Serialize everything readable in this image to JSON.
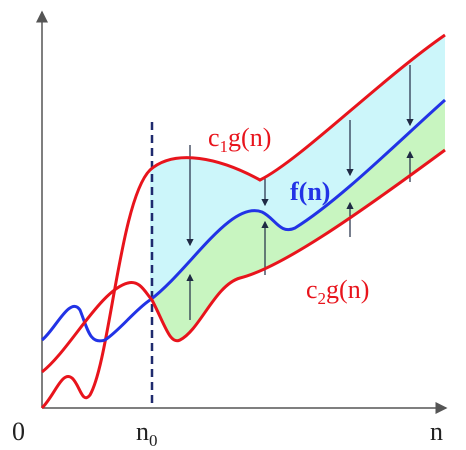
{
  "labels": {
    "origin": "0",
    "x_axis": "n",
    "n0": {
      "base": "n",
      "sub": "0"
    },
    "upper": {
      "base": "c",
      "sub": "1",
      "rest": "g(n)"
    },
    "middle": "f(n)",
    "lower": {
      "base": "c",
      "sub": "2",
      "rest": "g(n)"
    }
  }
}
